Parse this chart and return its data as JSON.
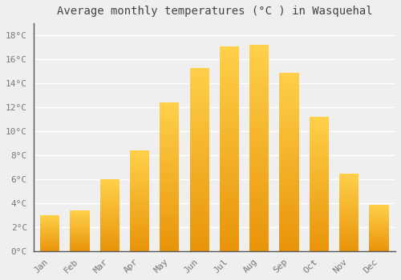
{
  "title": "Average monthly temperatures (°C ) in Wasquehal",
  "months": [
    "Jan",
    "Feb",
    "Mar",
    "Apr",
    "May",
    "Jun",
    "Jul",
    "Aug",
    "Sep",
    "Oct",
    "Nov",
    "Dec"
  ],
  "values": [
    3.0,
    3.4,
    6.0,
    8.4,
    12.4,
    15.3,
    17.1,
    17.2,
    14.9,
    11.2,
    6.5,
    3.9
  ],
  "ylim": [
    0,
    19
  ],
  "yticks": [
    0,
    2,
    4,
    6,
    8,
    10,
    12,
    14,
    16,
    18
  ],
  "ytick_labels": [
    "0°C",
    "2°C",
    "4°C",
    "6°C",
    "8°C",
    "10°C",
    "12°C",
    "14°C",
    "16°C",
    "18°C"
  ],
  "background_color": "#EFEFEF",
  "grid_color": "#FFFFFF",
  "bar_color_bottom": "#E8940A",
  "bar_color_top": "#FFD04A",
  "title_fontsize": 10,
  "tick_fontsize": 8,
  "bar_width": 0.65
}
